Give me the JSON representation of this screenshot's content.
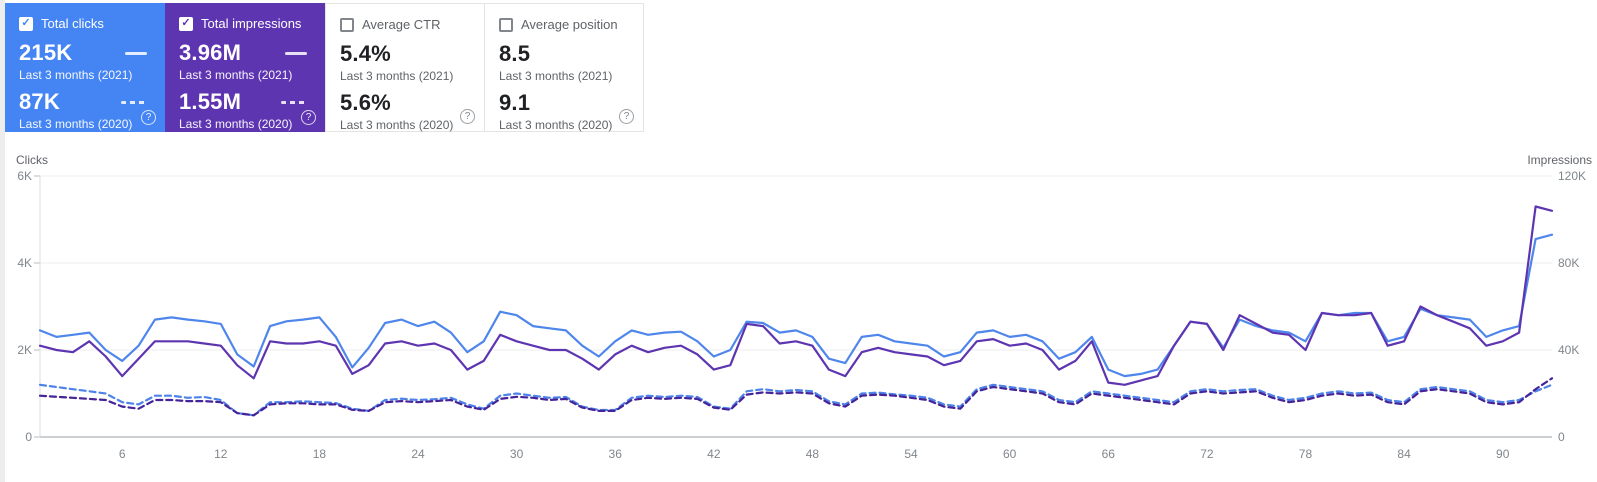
{
  "cards": [
    {
      "id": "total-clicks",
      "label": "Total clicks",
      "checked": true,
      "bg": "#4484f3",
      "value_current": "215K",
      "period_current": "Last 3 months (2021)",
      "value_previous": "87K",
      "period_previous": "Last 3 months (2020)",
      "help": "?"
    },
    {
      "id": "total-impressions",
      "label": "Total impressions",
      "checked": true,
      "bg": "#5e35b1",
      "value_current": "3.96M",
      "period_current": "Last 3 months (2021)",
      "value_previous": "1.55M",
      "period_previous": "Last 3 months (2020)",
      "help": "?"
    },
    {
      "id": "average-ctr",
      "label": "Average CTR",
      "checked": false,
      "bg": "#ffffff",
      "value_current": "5.4%",
      "period_current": "Last 3 months (2021)",
      "value_previous": "5.6%",
      "period_previous": "Last 3 months (2020)",
      "help": "?"
    },
    {
      "id": "average-position",
      "label": "Average position",
      "checked": false,
      "bg": "#ffffff",
      "value_current": "8.5",
      "period_current": "Last 3 months (2021)",
      "value_previous": "9.1",
      "period_previous": "Last 3 months (2020)",
      "help": "?"
    }
  ],
  "chart_data": {
    "type": "line",
    "days": 93,
    "x_ticks": {
      "values": [
        6,
        12,
        18,
        24,
        30,
        36,
        42,
        48,
        54,
        60,
        66,
        72,
        78,
        84,
        90
      ],
      "labels": [
        "6",
        "12",
        "18",
        "24",
        "30",
        "36",
        "42",
        "48",
        "54",
        "60",
        "66",
        "72",
        "78",
        "84",
        "90"
      ]
    },
    "left_axis": {
      "title": "Clicks",
      "min": 0,
      "max": 6000,
      "tick_values": [
        0,
        2000,
        4000,
        6000
      ],
      "tick_labels": [
        "0",
        "2K",
        "4K",
        "6K"
      ]
    },
    "right_axis": {
      "title": "Impressions",
      "min": 0,
      "max": 120000,
      "tick_values": [
        0,
        40000,
        80000,
        120000
      ],
      "tick_labels": [
        "0",
        "40K",
        "80K",
        "120K"
      ]
    },
    "grid": true,
    "series": [
      {
        "name": "Clicks 2021",
        "axis": "left",
        "style": "solid",
        "color": "#4f86ec",
        "values": [
          2450,
          2300,
          2350,
          2400,
          2000,
          1750,
          2100,
          2700,
          2750,
          2700,
          2660,
          2600,
          1900,
          1620,
          2550,
          2660,
          2700,
          2750,
          2300,
          1600,
          2050,
          2620,
          2700,
          2550,
          2650,
          2400,
          1950,
          2200,
          2880,
          2800,
          2550,
          2500,
          2450,
          2100,
          1850,
          2200,
          2450,
          2350,
          2400,
          2420,
          2200,
          1850,
          2000,
          2650,
          2620,
          2400,
          2450,
          2300,
          1800,
          1700,
          2300,
          2350,
          2200,
          2150,
          2100,
          1850,
          1950,
          2400,
          2450,
          2300,
          2350,
          2200,
          1800,
          1950,
          2300,
          1550,
          1400,
          1450,
          1550,
          2100,
          2650,
          2600,
          2050,
          2700,
          2550,
          2450,
          2400,
          2200,
          2850,
          2800,
          2850,
          2850,
          2200,
          2300,
          2950,
          2800,
          2750,
          2700,
          2300,
          2450,
          2550,
          4550,
          4650
        ]
      },
      {
        "name": "Impressions 2021",
        "axis": "right",
        "style": "solid",
        "color": "#5e35b1",
        "values": [
          42000,
          40000,
          39000,
          44000,
          37000,
          28000,
          36000,
          44000,
          44000,
          44000,
          43000,
          42000,
          33000,
          27000,
          44000,
          43000,
          43000,
          44000,
          42000,
          29000,
          33000,
          43000,
          44000,
          42000,
          43000,
          40000,
          31000,
          35000,
          47000,
          44000,
          42000,
          40000,
          40000,
          36000,
          31000,
          38000,
          42000,
          39000,
          41000,
          42000,
          38000,
          31000,
          33000,
          52000,
          51000,
          43000,
          44000,
          42000,
          31000,
          28000,
          39000,
          41000,
          39000,
          38000,
          37000,
          33000,
          35000,
          44000,
          45000,
          42000,
          43000,
          40000,
          31000,
          35000,
          44000,
          25000,
          24000,
          26000,
          28000,
          42000,
          53000,
          52000,
          40000,
          56000,
          52000,
          48000,
          47000,
          40000,
          57000,
          56000,
          56000,
          57000,
          42000,
          44000,
          60000,
          56000,
          53000,
          50000,
          42000,
          44000,
          48000,
          106000,
          104000
        ]
      },
      {
        "name": "Clicks 2020",
        "axis": "left",
        "style": "dashed",
        "color": "#4d82e8",
        "values": [
          1200,
          1150,
          1100,
          1050,
          1000,
          800,
          750,
          950,
          950,
          900,
          920,
          850,
          550,
          500,
          800,
          800,
          820,
          800,
          780,
          650,
          600,
          850,
          880,
          850,
          870,
          900,
          750,
          650,
          950,
          1000,
          950,
          900,
          920,
          700,
          620,
          620,
          900,
          950,
          920,
          950,
          920,
          700,
          650,
          1050,
          1100,
          1050,
          1080,
          1050,
          820,
          750,
          1000,
          1020,
          980,
          950,
          900,
          750,
          700,
          1100,
          1200,
          1150,
          1100,
          1050,
          850,
          800,
          1050,
          1000,
          950,
          900,
          850,
          800,
          1050,
          1100,
          1050,
          1080,
          1100,
          950,
          850,
          900,
          1000,
          1050,
          1000,
          1020,
          850,
          800,
          1100,
          1150,
          1100,
          1050,
          850,
          800,
          850,
          1050,
          1200
        ]
      },
      {
        "name": "Impressions 2020",
        "axis": "right",
        "style": "dashed",
        "color": "#452398",
        "values": [
          19000,
          18500,
          18000,
          17500,
          17000,
          14000,
          13000,
          17000,
          17000,
          16500,
          16500,
          16000,
          11000,
          10000,
          15000,
          15500,
          15500,
          15000,
          15000,
          12500,
          12000,
          16000,
          16500,
          16000,
          16500,
          17000,
          14000,
          12500,
          17500,
          18500,
          18000,
          17000,
          17500,
          13500,
          12000,
          12000,
          17000,
          18000,
          17500,
          18000,
          17500,
          13500,
          12500,
          19500,
          20500,
          20000,
          20500,
          20000,
          15500,
          14000,
          19000,
          19500,
          19000,
          18000,
          17000,
          14000,
          13000,
          21000,
          23000,
          22000,
          21000,
          20000,
          16000,
          15000,
          20000,
          19000,
          18000,
          17000,
          16000,
          15000,
          20000,
          21000,
          20000,
          20500,
          21000,
          18000,
          16000,
          17000,
          19000,
          20000,
          19000,
          19500,
          16000,
          15000,
          21000,
          22000,
          21000,
          20000,
          16000,
          15000,
          16000,
          22000,
          27000
        ]
      }
    ]
  }
}
